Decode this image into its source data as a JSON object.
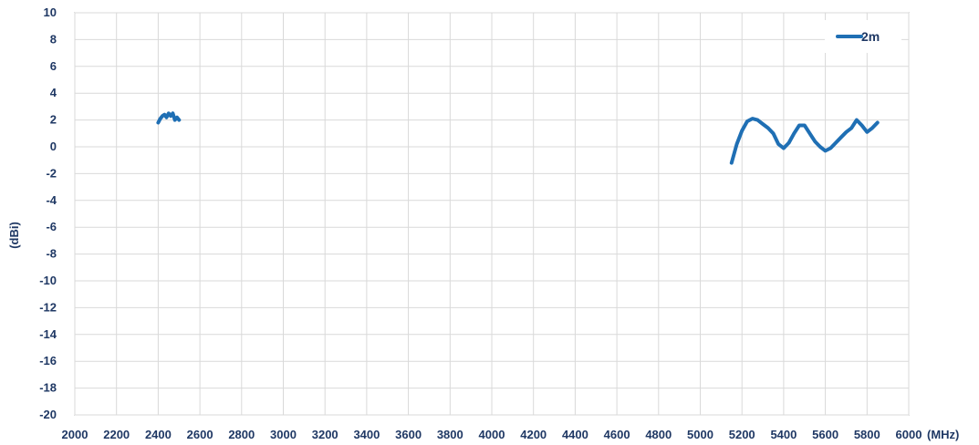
{
  "chart_data": {
    "type": "line",
    "xlabel": "(MHz)",
    "ylabel": "(dBi)",
    "xlim": [
      2000,
      6000
    ],
    "ylim": [
      -20,
      10
    ],
    "x_ticks": [
      "2000",
      "2200",
      "2400",
      "2600",
      "2800",
      "3000",
      "3200",
      "3400",
      "3600",
      "3800",
      "4000",
      "4200",
      "4400",
      "4600",
      "4800",
      "5000",
      "5200",
      "5400",
      "5600",
      "5800",
      "6000"
    ],
    "y_ticks": [
      "10",
      "8",
      "6",
      "4",
      "2",
      "0",
      "-2",
      "-4",
      "-6",
      "-8",
      "-10",
      "-12",
      "-14",
      "-16",
      "-18",
      "-20"
    ],
    "grid": true,
    "legend_position": "top-right",
    "series": [
      {
        "name": "2m",
        "color": "#1f6fb4",
        "segments": [
          [
            {
              "x": 2400,
              "y": 1.8
            },
            {
              "x": 2410,
              "y": 2.1
            },
            {
              "x": 2420,
              "y": 2.3
            },
            {
              "x": 2430,
              "y": 2.4
            },
            {
              "x": 2440,
              "y": 2.2
            },
            {
              "x": 2450,
              "y": 2.5
            },
            {
              "x": 2460,
              "y": 2.3
            },
            {
              "x": 2470,
              "y": 2.5
            },
            {
              "x": 2480,
              "y": 2.0
            },
            {
              "x": 2490,
              "y": 2.2
            },
            {
              "x": 2500,
              "y": 2.0
            }
          ],
          [
            {
              "x": 5150,
              "y": -1.2
            },
            {
              "x": 5175,
              "y": 0.2
            },
            {
              "x": 5200,
              "y": 1.2
            },
            {
              "x": 5225,
              "y": 1.9
            },
            {
              "x": 5250,
              "y": 2.1
            },
            {
              "x": 5275,
              "y": 2.0
            },
            {
              "x": 5300,
              "y": 1.7
            },
            {
              "x": 5325,
              "y": 1.4
            },
            {
              "x": 5350,
              "y": 1.0
            },
            {
              "x": 5375,
              "y": 0.2
            },
            {
              "x": 5400,
              "y": -0.1
            },
            {
              "x": 5425,
              "y": 0.3
            },
            {
              "x": 5450,
              "y": 1.0
            },
            {
              "x": 5475,
              "y": 1.6
            },
            {
              "x": 5500,
              "y": 1.6
            },
            {
              "x": 5525,
              "y": 1.0
            },
            {
              "x": 5550,
              "y": 0.4
            },
            {
              "x": 5575,
              "y": 0.0
            },
            {
              "x": 5600,
              "y": -0.3
            },
            {
              "x": 5625,
              "y": -0.1
            },
            {
              "x": 5650,
              "y": 0.3
            },
            {
              "x": 5675,
              "y": 0.7
            },
            {
              "x": 5700,
              "y": 1.1
            },
            {
              "x": 5725,
              "y": 1.4
            },
            {
              "x": 5750,
              "y": 2.0
            },
            {
              "x": 5775,
              "y": 1.6
            },
            {
              "x": 5800,
              "y": 1.1
            },
            {
              "x": 5825,
              "y": 1.4
            },
            {
              "x": 5850,
              "y": 1.8
            }
          ]
        ]
      }
    ]
  }
}
